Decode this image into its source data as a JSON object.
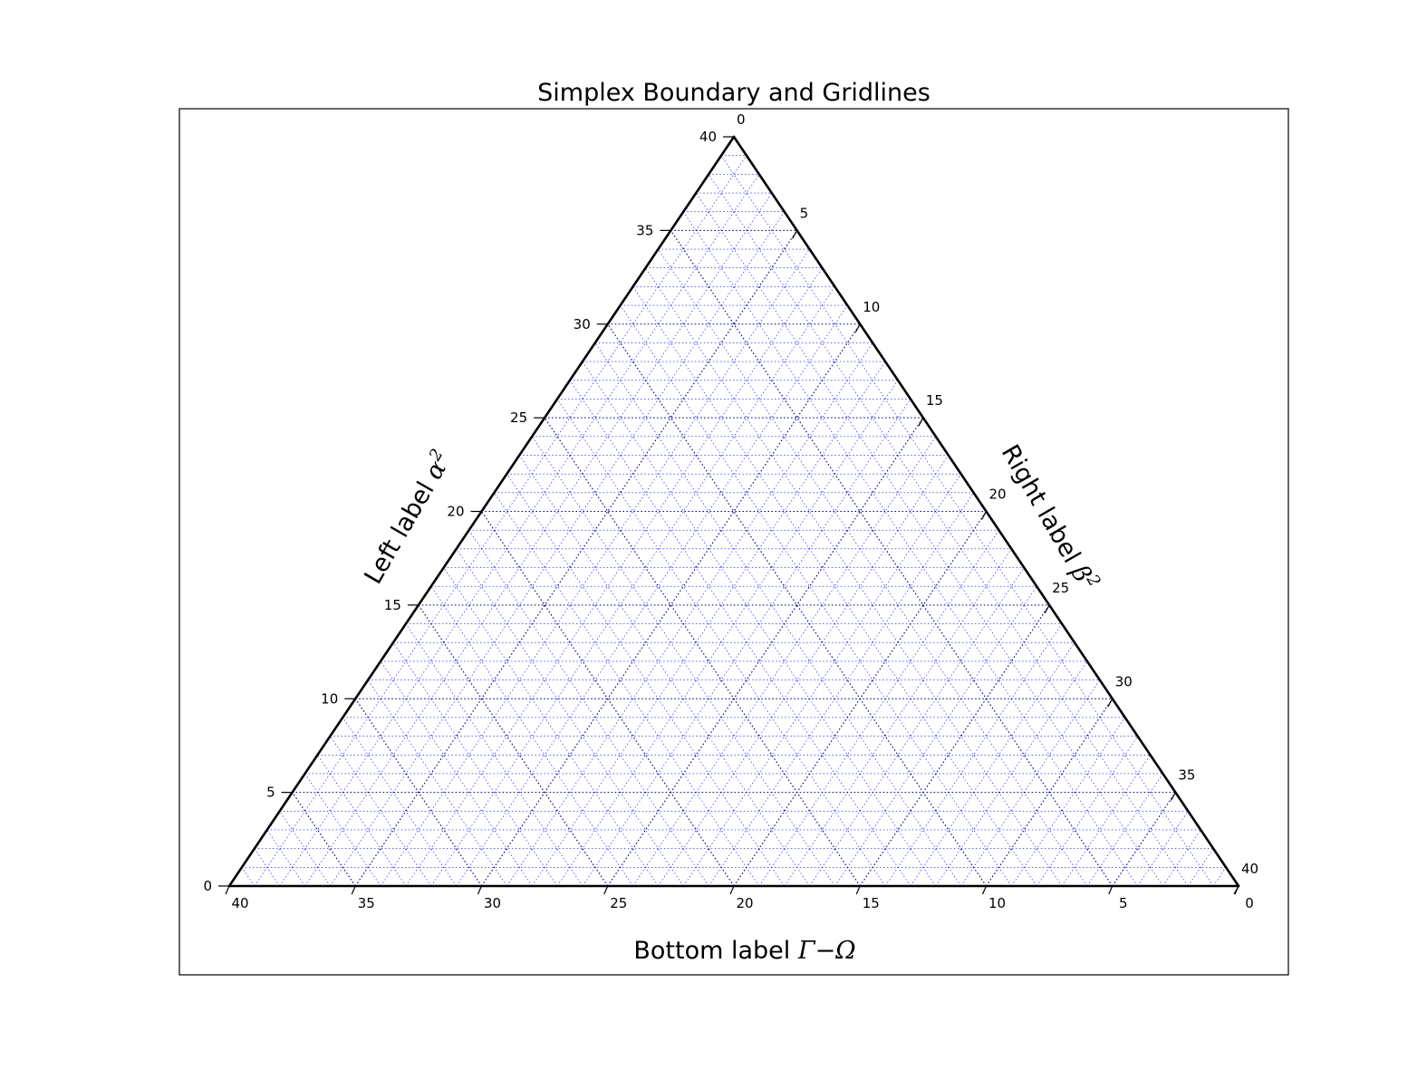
{
  "chart_data": {
    "type": "ternary",
    "title": "Simplex Boundary and Gridlines",
    "scale": 40,
    "major_multiple": 5,
    "minor_multiple": 1,
    "axes": {
      "bottom": {
        "label_text": "Bottom label ",
        "label_math": "Γ−Ω",
        "ticks": [
          40,
          35,
          30,
          25,
          20,
          15,
          10,
          5,
          0
        ]
      },
      "left": {
        "label_text": "Left label ",
        "label_math": "α",
        "label_sup": "2",
        "ticks": [
          0,
          5,
          10,
          15,
          20,
          25,
          30,
          35,
          40
        ]
      },
      "right": {
        "label_text": "Right label ",
        "label_math": "β",
        "label_sup": "2",
        "ticks": [
          0,
          5,
          10,
          15,
          20,
          25,
          30,
          35,
          40
        ]
      }
    },
    "colors": {
      "boundary": "#000000",
      "major_grid": "#000080",
      "minor_grid": "#0000ff"
    },
    "grid": true
  }
}
